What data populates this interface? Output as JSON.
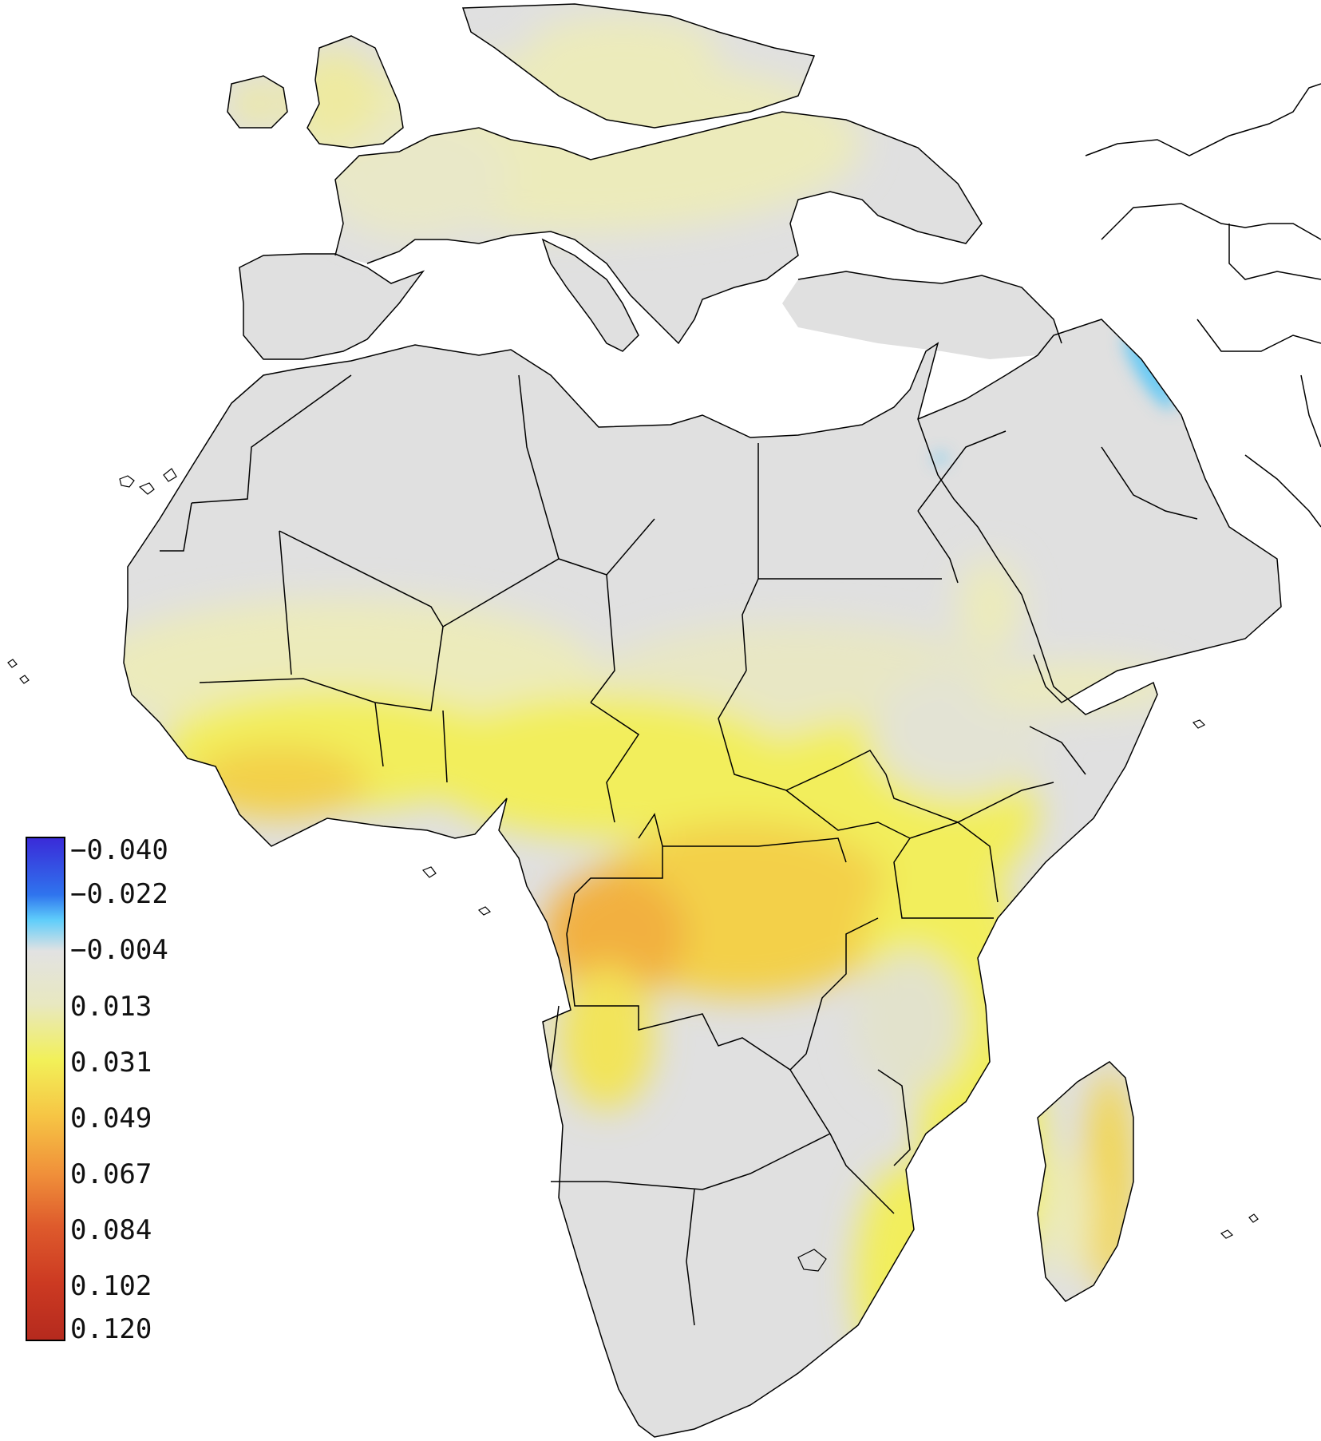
{
  "colorbar": {
    "labels": [
      "−0.040",
      "−0.022",
      "−0.004",
      "0.013",
      "0.031",
      "0.049",
      "0.067",
      "0.084",
      "0.102",
      "0.120"
    ],
    "stops": [
      {
        "value": -0.04,
        "color": "#3a2bd8"
      },
      {
        "value": -0.022,
        "color": "#2f74ee"
      },
      {
        "value": -0.014,
        "color": "#5ecdfb"
      },
      {
        "value": -0.004,
        "color": "#e2e2e2"
      },
      {
        "value": 0.013,
        "color": "#e8e8c0"
      },
      {
        "value": 0.031,
        "color": "#f2f058"
      },
      {
        "value": 0.049,
        "color": "#f6c444"
      },
      {
        "value": 0.067,
        "color": "#f0903a"
      },
      {
        "value": 0.084,
        "color": "#de5a2c"
      },
      {
        "value": 0.102,
        "color": "#cc3a22"
      },
      {
        "value": 0.12,
        "color": "#b52a1e"
      }
    ]
  },
  "map_colors": {
    "ocean": "#ffffff",
    "neutral_land": "#e0e0e0",
    "pale_yellow": "#ecebbb",
    "yellow": "#f2ee5c",
    "gold": "#f3d04a",
    "orange": "#f2b040",
    "negative_blue": "#5ec8f6",
    "border": "#000000"
  }
}
